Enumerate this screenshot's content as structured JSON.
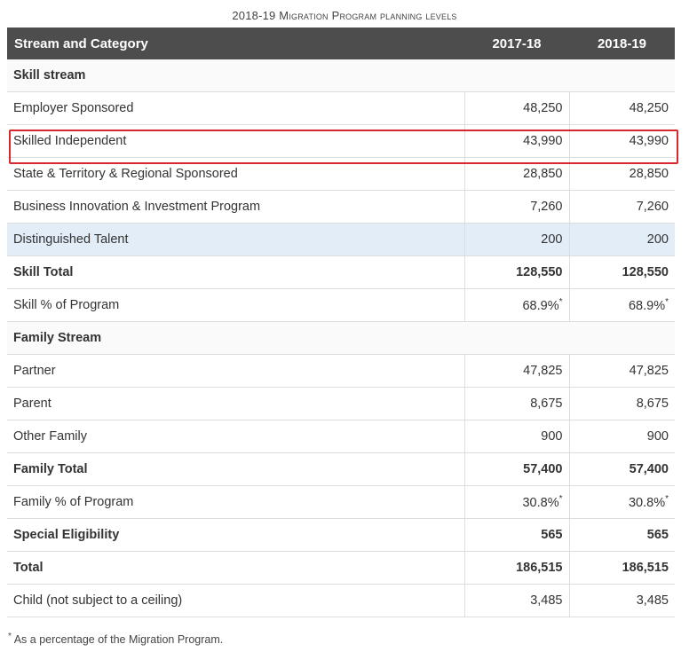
{
  "caption": "2018-19 Migration Program planning levels",
  "headers": [
    "Stream and Category",
    "2017-18",
    "2018-19"
  ],
  "rows": [
    {
      "type": "section",
      "label": "Skill stream"
    },
    {
      "label": "Employer Sponsored",
      "a": "48,250",
      "b": "48,250"
    },
    {
      "label": "Skilled Independent",
      "a": "43,990",
      "b": "43,990",
      "outlined": true
    },
    {
      "label": "State & Territory & Regional Sponsored",
      "a": "28,850",
      "b": "28,850"
    },
    {
      "label": "Business Innovation & Investment Program",
      "a": "7,260",
      "b": "7,260"
    },
    {
      "label": "Distinguished Talent",
      "a": "200",
      "b": "200",
      "highlight": true
    },
    {
      "type": "bold",
      "label": "Skill Total",
      "a": "128,550",
      "b": "128,550"
    },
    {
      "label": "Skill % of Program",
      "a": "68.9%",
      "b": "68.9%",
      "star": "*"
    },
    {
      "type": "section",
      "label": "Family Stream"
    },
    {
      "label": "Partner",
      "a": "47,825",
      "b": "47,825"
    },
    {
      "label": "Parent",
      "a": "8,675",
      "b": "8,675"
    },
    {
      "label": "Other Family",
      "a": "900",
      "b": "900"
    },
    {
      "type": "bold",
      "label": "Family Total",
      "a": "57,400",
      "b": "57,400"
    },
    {
      "label": "Family % of Program",
      "a": "30.8%",
      "b": "30.8%",
      "star": "*"
    },
    {
      "type": "bold",
      "label": "Special Eligibility",
      "a": "565",
      "b": "565"
    },
    {
      "type": "bold",
      "label": "Total",
      "a": "186,515",
      "b": "186,515"
    },
    {
      "label": "Child (not subject to a ceiling)",
      "a": "3,485",
      "b": "3,485"
    }
  ],
  "footnote": {
    "star": "*",
    "text": "As a percentage of the Migration Program."
  },
  "colors": {
    "header": "#4d4d4d",
    "highlight": "#e2edf8",
    "outline": "#d9272e"
  }
}
